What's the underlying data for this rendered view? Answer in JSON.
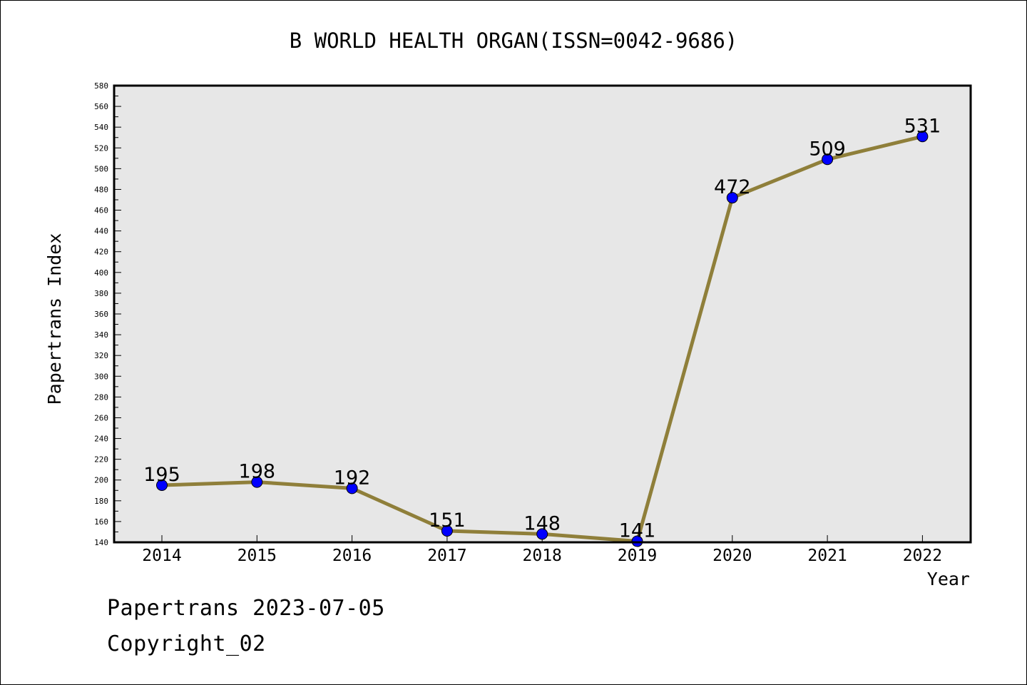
{
  "chart_data": {
    "type": "line",
    "title": "B WORLD HEALTH ORGAN(ISSN=0042-9686)",
    "xlabel": "Year",
    "ylabel": "Papertrans Index",
    "categories": [
      "2014",
      "2015",
      "2016",
      "2017",
      "2018",
      "2019",
      "2020",
      "2021",
      "2022"
    ],
    "series": [
      {
        "values": [
          195,
          198,
          192,
          151,
          148,
          141,
          472,
          509,
          531
        ]
      }
    ],
    "data_labels": [
      "195",
      "198",
      "192",
      "151",
      "148",
      "141",
      "472",
      "509",
      "531"
    ],
    "ylim": [
      140,
      580
    ],
    "yticks": [
      140,
      160,
      180,
      200,
      220,
      240,
      260,
      280,
      300,
      320,
      340,
      360,
      380,
      400,
      420,
      440,
      460,
      480,
      500,
      520,
      540,
      560,
      580
    ],
    "grid": false,
    "legend": "none",
    "colors": {
      "line": "#8f7f3a",
      "marker": "#0000ff",
      "plot_background": "#e7e7e7",
      "frame": "#000000"
    }
  },
  "footer": {
    "date_line": "Papertrans 2023-07-05",
    "copyright": "Copyright_02"
  }
}
